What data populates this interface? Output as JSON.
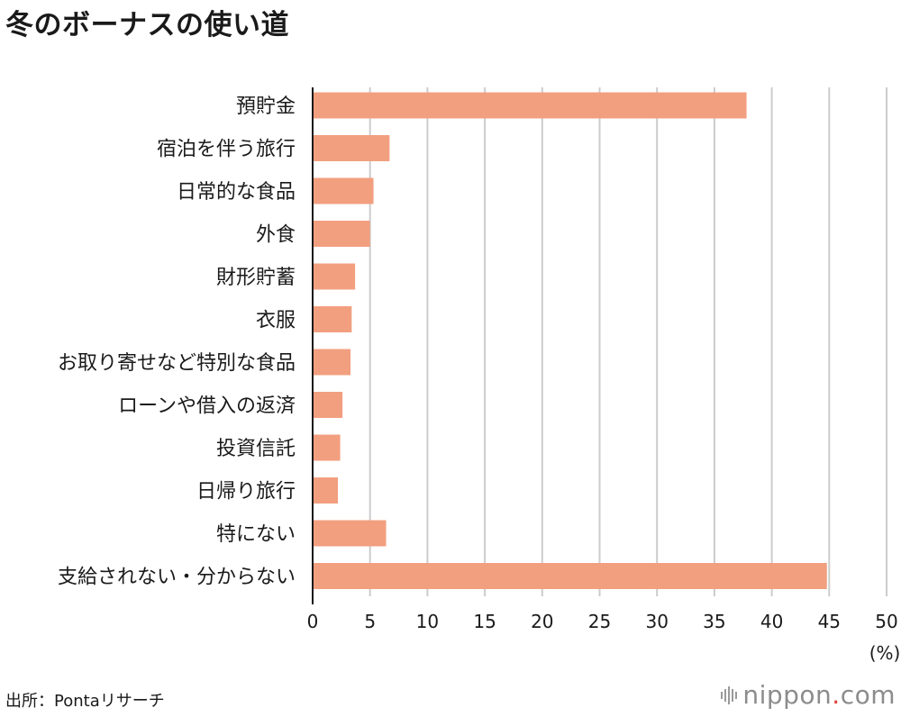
{
  "title": "冬のボーナスの使い道",
  "source": "出所：Pontaリサーチ",
  "logo": {
    "name": "nippon",
    "dot": ".",
    "suffix": "com"
  },
  "colors": {
    "bar": "#f29f7f",
    "grid": "#cccccc",
    "axis": "#1a1a1a",
    "text": "#1a1a1a"
  },
  "chart_data": {
    "type": "bar",
    "orientation": "horizontal",
    "title": "冬のボーナスの使い道",
    "categories": [
      "預貯金",
      "宿泊を伴う旅行",
      "日常的な食品",
      "外食",
      "財形貯蓄",
      "衣服",
      "お取り寄せなど特別な食品",
      "ローンや借入の返済",
      "投資信託",
      "日帰り旅行",
      "特にない",
      "支給されない・分からない"
    ],
    "values": [
      37.8,
      6.7,
      5.3,
      5.0,
      3.7,
      3.4,
      3.3,
      2.6,
      2.4,
      2.2,
      6.4,
      44.8
    ],
    "xlim": [
      0,
      50
    ],
    "xticks": [
      0,
      5,
      10,
      15,
      20,
      25,
      30,
      35,
      40,
      45,
      50
    ],
    "xlabel": "(%)",
    "ylabel": "",
    "grid": true,
    "legend": "none"
  }
}
